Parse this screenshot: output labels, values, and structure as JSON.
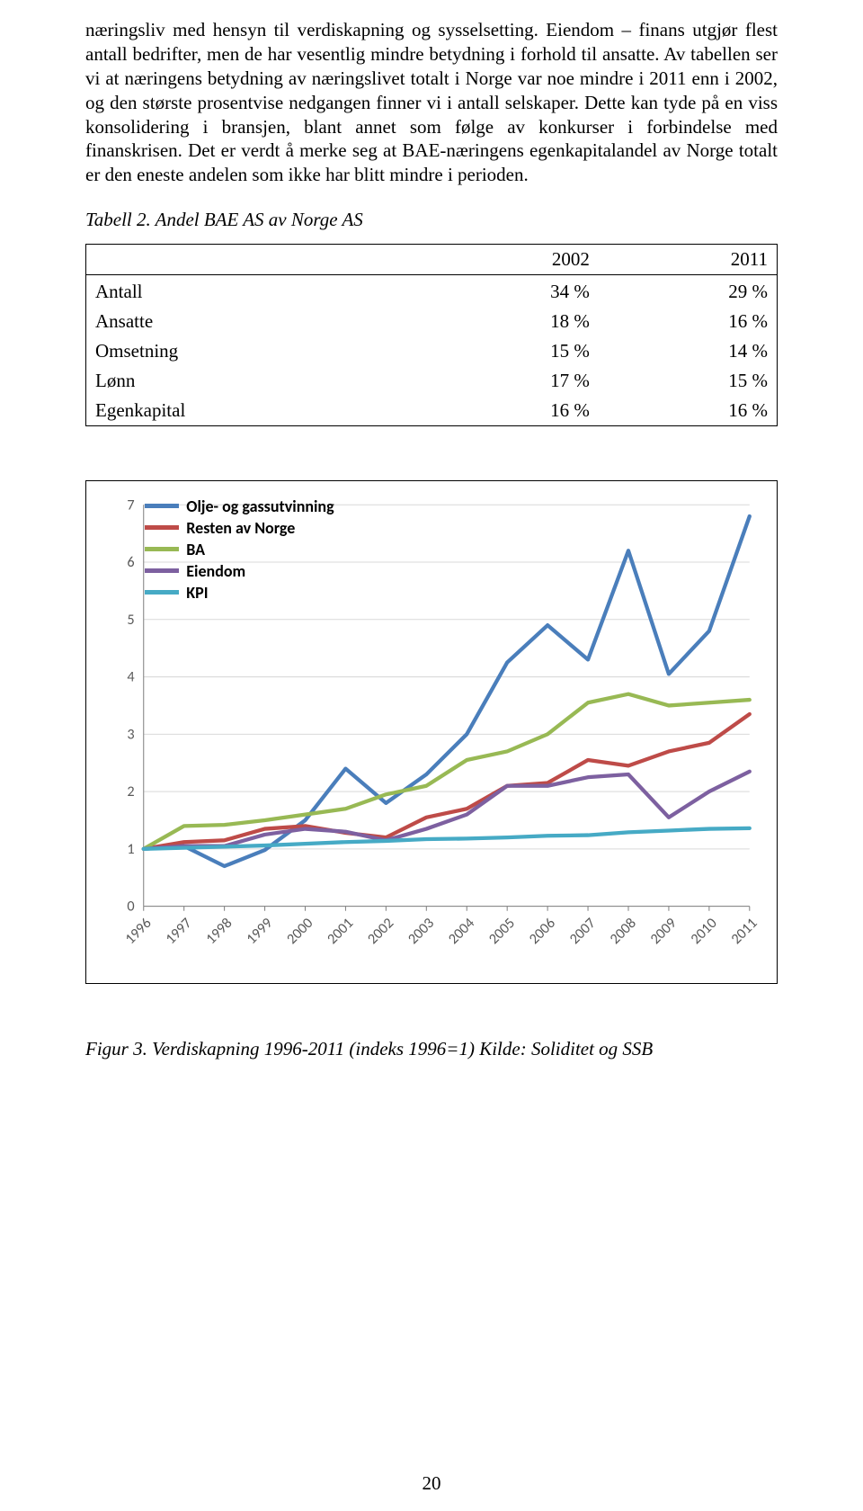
{
  "body_text": {
    "para1": "næringsliv med hensyn til verdiskapning og sysselsetting. Eiendom – finans utgjør flest antall bedrifter, men de har vesentlig mindre betydning i forhold til ansatte. Av tabellen ser vi at næringens betydning av næringslivet totalt i Norge var noe mindre i 2011 enn i 2002, og den største prosentvise nedgangen finner vi i antall selskaper. Dette kan tyde på en viss konsolidering i bransjen, blant annet som følge av konkurser i forbindelse med finanskrisen. Det er verdt å merke seg at BAE-næringens egenkapitalandel av Norge totalt er den eneste andelen som ikke har blitt mindre i perioden.",
    "table_caption": "Tabell 2. Andel BAE AS av Norge AS",
    "fig_caption": "Figur 3. Verdiskapning 1996-2011 (indeks 1996=1) Kilde: Soliditet og SSB",
    "pagenum": "20"
  },
  "table": {
    "columns": [
      "",
      "2002",
      "2011"
    ],
    "rows": [
      [
        "Antall",
        "34 %",
        "29 %"
      ],
      [
        "Ansatte",
        "18 %",
        "16 %"
      ],
      [
        "Omsetning",
        "15 %",
        "14 %"
      ],
      [
        "Lønn",
        "17 %",
        "15 %"
      ],
      [
        "Egenkapital",
        "16 %",
        "16 %"
      ]
    ]
  },
  "chart": {
    "type": "line",
    "x_categories": [
      "1996",
      "1997",
      "1998",
      "1999",
      "2000",
      "2001",
      "2002",
      "2003",
      "2004",
      "2005",
      "2006",
      "2007",
      "2008",
      "2009",
      "2010",
      "2011"
    ],
    "ylim": [
      0,
      7
    ],
    "ytick_step": 1,
    "grid_color": "#d9d9d9",
    "border_color": "#808080",
    "line_width": 4.2,
    "tick_font_family": "Calibri, Arial, sans-serif",
    "tick_fontsize": 16,
    "tick_color": "#595959",
    "x_tick_rotation": -45,
    "legend": {
      "font_family": "Calibri, Arial, sans-serif",
      "font_weight": "bold",
      "fontsize": 18,
      "position": "upper-left-inside",
      "items": [
        {
          "label": "Olje- og gassutvinning",
          "color": "#4a7ebb"
        },
        {
          "label": "Resten av Norge",
          "color": "#be4b48"
        },
        {
          "label": "BA",
          "color": "#98b954"
        },
        {
          "label": "Eiendom",
          "color": "#7d60a0"
        },
        {
          "label": "KPI",
          "color": "#46aac5"
        }
      ]
    },
    "series": [
      {
        "name": "Olje- og gassutvinning",
        "color": "#4a7ebb",
        "values": [
          1.0,
          1.05,
          0.7,
          0.98,
          1.5,
          2.4,
          1.8,
          2.3,
          3.0,
          4.25,
          4.9,
          4.3,
          6.2,
          4.05,
          4.8,
          6.8
        ]
      },
      {
        "name": "Resten av Norge",
        "color": "#be4b48",
        "values": [
          1.0,
          1.12,
          1.15,
          1.35,
          1.4,
          1.28,
          1.2,
          1.55,
          1.7,
          2.1,
          2.15,
          2.55,
          2.45,
          2.7,
          2.85,
          3.35
        ]
      },
      {
        "name": "BA",
        "color": "#98b954",
        "values": [
          1.0,
          1.4,
          1.42,
          1.5,
          1.6,
          1.7,
          1.95,
          2.1,
          2.55,
          2.7,
          3.0,
          3.55,
          3.7,
          3.5,
          3.55,
          3.6
        ]
      },
      {
        "name": "Eiendom",
        "color": "#7d60a0",
        "values": [
          1.0,
          1.05,
          1.05,
          1.25,
          1.35,
          1.3,
          1.15,
          1.35,
          1.6,
          2.1,
          2.1,
          2.25,
          2.3,
          1.55,
          2.0,
          2.35
        ]
      },
      {
        "name": "KPI",
        "color": "#46aac5",
        "values": [
          1.0,
          1.02,
          1.04,
          1.06,
          1.09,
          1.12,
          1.14,
          1.17,
          1.18,
          1.2,
          1.23,
          1.24,
          1.29,
          1.32,
          1.35,
          1.36
        ]
      }
    ]
  }
}
